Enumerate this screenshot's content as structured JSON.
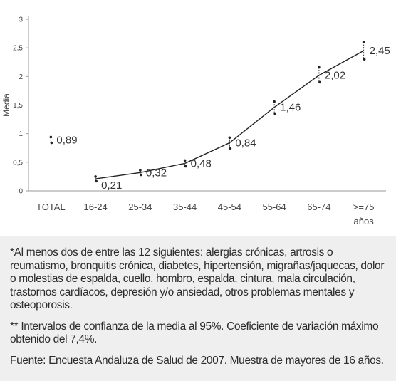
{
  "chart_data": {
    "type": "line",
    "ylabel": "Media",
    "xlabel": "",
    "ylim": [
      0,
      3
    ],
    "yticks": [
      "0",
      "0,5",
      "1",
      "1,5",
      "2",
      "2,5",
      "3"
    ],
    "categories": [
      "TOTAL",
      "16-24",
      "25-34",
      "35-44",
      "45-54",
      "55-64",
      "65-74",
      ">=75 años"
    ],
    "category_lines": [
      [
        "TOTAL"
      ],
      [
        "16-24"
      ],
      [
        "25-34"
      ],
      [
        "35-44"
      ],
      [
        "45-54"
      ],
      [
        "55-64"
      ],
      [
        "65-74"
      ],
      [
        ">=75",
        "años"
      ]
    ],
    "values": [
      0.89,
      0.21,
      0.32,
      0.48,
      0.84,
      1.46,
      2.02,
      2.45
    ],
    "value_labels": [
      "0,89",
      "0,21",
      "0,32",
      "0,48",
      "0,84",
      "1,46",
      "2,02",
      "2,45"
    ],
    "ci_low": [
      0.84,
      0.17,
      0.28,
      0.43,
      0.74,
      1.35,
      1.9,
      2.3
    ],
    "ci_high": [
      0.94,
      0.25,
      0.36,
      0.53,
      0.93,
      1.56,
      2.16,
      2.6
    ],
    "line_excludes": [
      "TOTAL"
    ],
    "grid": false,
    "line_color": "#222222"
  },
  "notes": {
    "footnote1": "*Al menos dos de entre las 12 siguientes: alergias crónicas, artrosis o reumatismo, bronquitis crónica, diabetes, hipertensión, migrañas/jaquecas, dolor o molestias de espalda, cuello, hombro, espalda, cintura, mala circulación, trastornos cardíacos, depresión y/o ansiedad, otros problemas mentales y osteoporosis.",
    "footnote2": "** Intervalos de confianza de la media al 95%. Coeficiente de variación máximo obtenido del 7,4%.",
    "source": "Fuente: Encuesta Andaluza de Salud de 2007. Muestra de mayores de 16 años."
  }
}
